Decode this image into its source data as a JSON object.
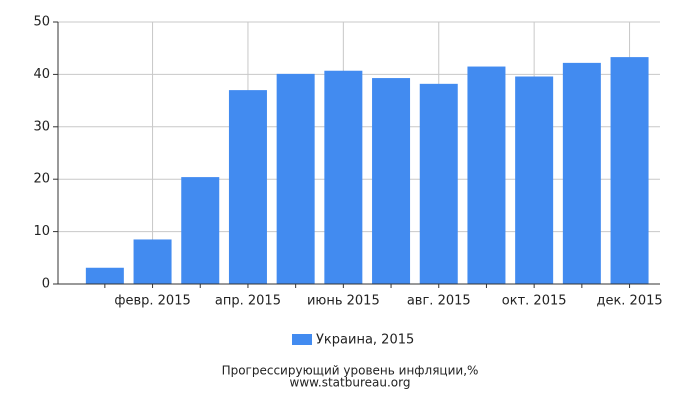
{
  "chart_data": {
    "type": "bar",
    "title": "Прогрессирующий уровень инфляции,%",
    "source": "www.statbureau.org",
    "categories": [
      null,
      "февр. 2015",
      null,
      "апр. 2015",
      null,
      "июнь 2015",
      null,
      "авг. 2015",
      null,
      "окт. 2015",
      null,
      "дек. 2015"
    ],
    "series": [
      {
        "name": "Украина, 2015",
        "color": "#428bf0",
        "values": [
          3.1,
          8.5,
          20.4,
          37.0,
          40.1,
          40.7,
          39.3,
          38.2,
          41.5,
          39.6,
          42.2,
          43.3
        ]
      }
    ],
    "ylim": [
      0,
      50
    ],
    "yticks": [
      0,
      10,
      20,
      30,
      40,
      50
    ],
    "grid": true
  }
}
